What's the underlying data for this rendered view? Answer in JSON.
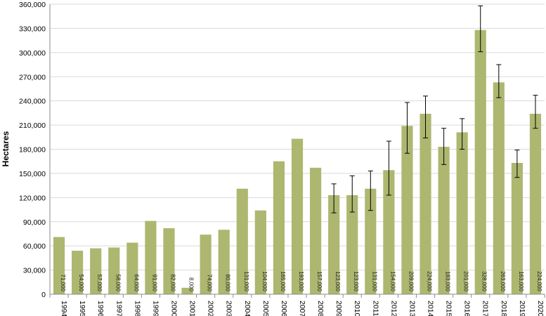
{
  "chart_data": {
    "type": "bar",
    "title": "",
    "xlabel": "",
    "ylabel": "Hectares",
    "ylim": [
      0,
      360000
    ],
    "y_ticks": [
      "0",
      "30,000",
      "60,000",
      "90,000",
      "120,000",
      "150,000",
      "180,000",
      "210,000",
      "240,000",
      "270,000",
      "300,000",
      "330,000",
      "360,000"
    ],
    "y_tick_values": [
      0,
      30000,
      60000,
      90000,
      120000,
      150000,
      180000,
      210000,
      240000,
      270000,
      300000,
      330000,
      360000
    ],
    "grid": true,
    "legend": "none",
    "bar_color": "#adb76f",
    "categories": [
      "1994",
      "1995",
      "1996",
      "1997",
      "1998",
      "1999",
      "2000",
      "2001",
      "2002",
      "2003",
      "2004",
      "2005",
      "2006",
      "2007",
      "2008",
      "2009",
      "2010",
      "2011",
      "2012",
      "2013",
      "2014",
      "2015",
      "2016",
      "2017",
      "2018",
      "2019",
      "2020"
    ],
    "values": [
      71000,
      54000,
      57000,
      58000,
      64000,
      91000,
      82000,
      8000,
      74000,
      80000,
      131000,
      104000,
      165000,
      193000,
      157000,
      123000,
      123000,
      131000,
      154000,
      209000,
      224000,
      183000,
      201000,
      328000,
      263000,
      163000,
      224000
    ],
    "data_labels": [
      "71,000",
      "54,000",
      "57,000",
      "58,000",
      "64,000",
      "91,000",
      "82,000",
      "8,000",
      "74,000",
      "80,000",
      "131,000",
      "104,000",
      "165,000",
      "193,000",
      "157,000",
      "123,000",
      "123,000",
      "131,000",
      "154,000",
      "209,000",
      "224,000",
      "183,000",
      "201,000",
      "328,000",
      "263,000",
      "163,000",
      "224,000"
    ],
    "error_bars": [
      null,
      null,
      null,
      null,
      null,
      null,
      null,
      null,
      null,
      null,
      null,
      null,
      null,
      null,
      null,
      [
        101000,
        137000
      ],
      [
        102000,
        147000
      ],
      [
        104000,
        153000
      ],
      [
        123000,
        190000
      ],
      [
        175000,
        238000
      ],
      [
        194000,
        246000
      ],
      [
        161000,
        206000
      ],
      [
        180000,
        218000
      ],
      [
        301000,
        358000
      ],
      [
        244000,
        285000
      ],
      [
        145000,
        179000
      ],
      [
        206000,
        247000
      ]
    ]
  }
}
